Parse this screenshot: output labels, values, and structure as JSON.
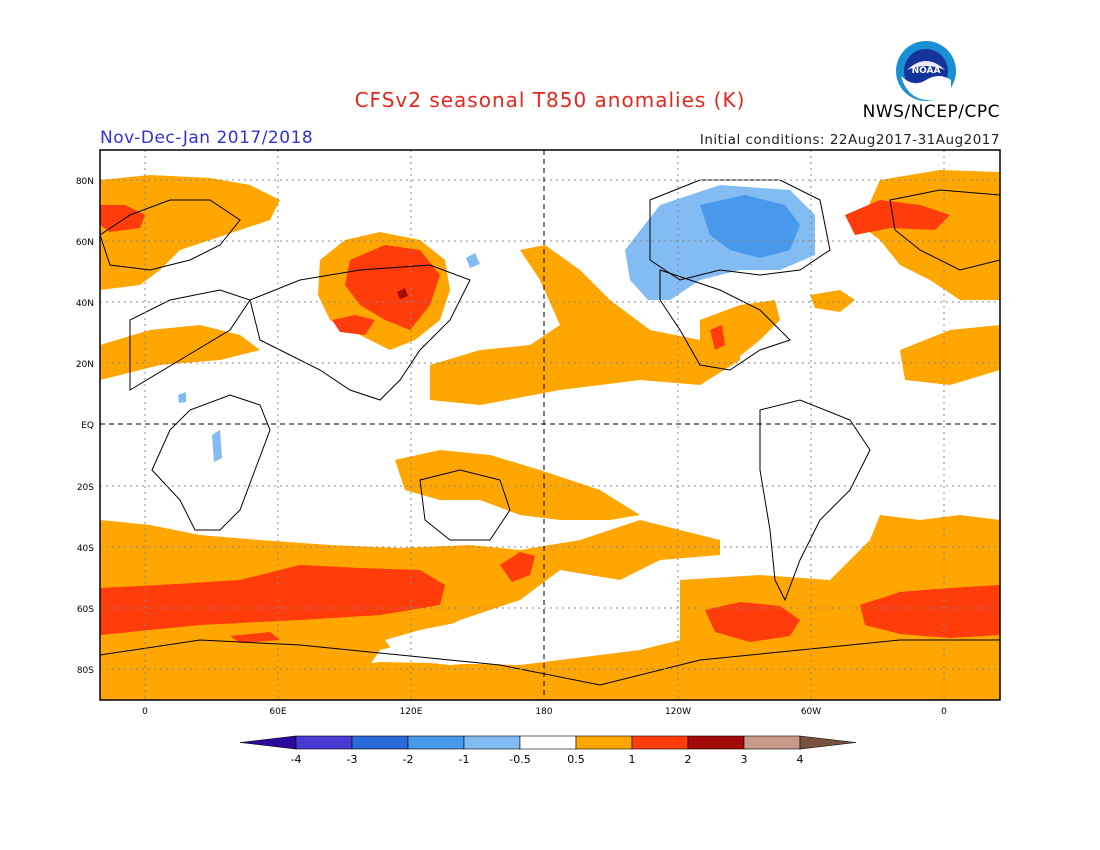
{
  "title": "CFSv2 seasonal T850 anomalies (K)",
  "season": "Nov-Dec-Jan 2017/2018",
  "initial_conditions": "Initial conditions: 22Aug2017-31Aug2017",
  "organization": "NWS/NCEP/CPC",
  "logo_text": "NOAA",
  "lat_labels": [
    "80N",
    "60N",
    "40N",
    "20N",
    "EQ",
    "20S",
    "40S",
    "60S",
    "80S"
  ],
  "lon_labels": [
    "0",
    "60E",
    "120E",
    "180",
    "120W",
    "60W",
    "0"
  ],
  "colorbar": {
    "labels": [
      "-4",
      "-3",
      "-2",
      "-1",
      "-0.5",
      "0.5",
      "1",
      "2",
      "3",
      "4"
    ],
    "colors": [
      "#2a0a9a",
      "#4a3ad4",
      "#2a6ad8",
      "#4898ec",
      "#82bcf2",
      "#ffffff",
      "#ffa600",
      "#ff3c0a",
      "#a50a0a",
      "#c89a8a",
      "#7a5040"
    ]
  },
  "colors": {
    "orange": "#ffa600",
    "red": "#ff3c0a",
    "dark_red": "#a50a0a",
    "light_blue": "#82bcf2",
    "mid_blue": "#4898ec",
    "blue": "#2a6ad8"
  }
}
